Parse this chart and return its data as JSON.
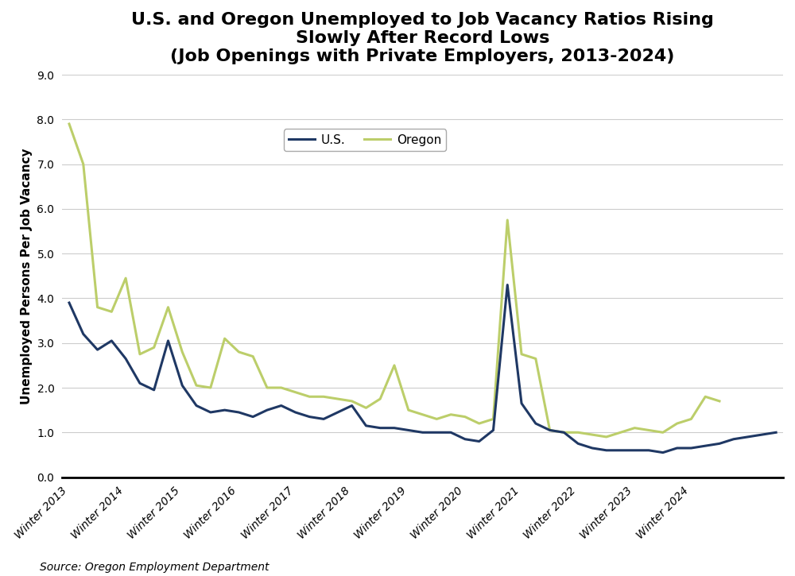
{
  "title": "U.S. and Oregon Unemployed to Job Vacancy Ratios Rising\nSlowly After Record Lows\n(Job Openings with Private Employers, 2013-2024)",
  "ylabel": "Unemployed Persons Per Job Vacancy",
  "source": "Source: Oregon Employment Department",
  "ylim": [
    0.0,
    9.0
  ],
  "yticks": [
    0.0,
    1.0,
    2.0,
    3.0,
    4.0,
    5.0,
    6.0,
    7.0,
    8.0,
    9.0
  ],
  "xtick_labels": [
    "Winter 2013",
    "Winter 2014",
    "Winter 2015",
    "Winter 2016",
    "Winter 2017",
    "Winter 2018",
    "Winter 2019",
    "Winter 2020",
    "Winter 2021",
    "Winter 2022",
    "Winter 2023",
    "Winter 2024"
  ],
  "us_color": "#1F3864",
  "oregon_color": "#BCCE6A",
  "us_label": "U.S.",
  "oregon_label": "Oregon",
  "line_width": 2.2,
  "us_quarterly": [
    3.9,
    3.2,
    2.85,
    3.05,
    2.65,
    2.1,
    1.95,
    3.05,
    2.05,
    1.6,
    1.45,
    1.5,
    1.45,
    1.35,
    1.5,
    1.6,
    1.45,
    1.35,
    1.3,
    1.45,
    1.6,
    1.15,
    1.1,
    1.1,
    1.05,
    1.0,
    1.0,
    1.0,
    0.85,
    0.8,
    1.05,
    4.3,
    1.65,
    1.2,
    1.05,
    1.0,
    0.75,
    0.65,
    0.6,
    0.6,
    0.6,
    0.6,
    0.55,
    0.65,
    0.65,
    0.7,
    0.75,
    0.85,
    0.9,
    0.95,
    1.0
  ],
  "or_quarterly": [
    7.9,
    7.0,
    3.8,
    3.7,
    4.45,
    2.75,
    2.9,
    3.8,
    2.8,
    2.05,
    2.0,
    3.1,
    2.8,
    2.7,
    2.0,
    2.0,
    1.9,
    1.8,
    1.8,
    1.75,
    1.7,
    1.55,
    1.75,
    2.5,
    1.5,
    1.4,
    1.3,
    1.4,
    1.35,
    1.2,
    1.3,
    5.75,
    2.75,
    2.65,
    1.05,
    1.0,
    1.0,
    0.95,
    0.9,
    1.0,
    1.1,
    1.05,
    1.0,
    1.2,
    1.3,
    1.8,
    1.7
  ],
  "n_quarters_per_year": 4,
  "start_year": 2013,
  "background_color": "#ffffff",
  "grid_color": "#cccccc",
  "title_fontsize": 16,
  "label_fontsize": 11,
  "tick_fontsize": 10,
  "source_fontsize": 10
}
